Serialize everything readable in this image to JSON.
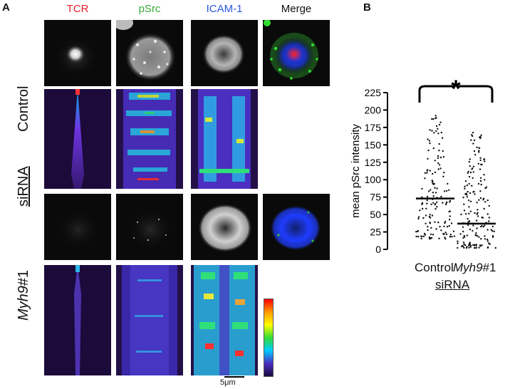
{
  "panel_a": {
    "letter": "A",
    "columns": [
      {
        "label": "TCR",
        "color": "#e8202a"
      },
      {
        "label": "pSrc",
        "color": "#3aab3a"
      },
      {
        "label": "ICAM-1",
        "color": "#2a58e0"
      },
      {
        "label": "Merge",
        "color": "#111111"
      }
    ],
    "row_labels": {
      "control": "Control",
      "myh9_italic": "Myh9",
      "myh9_suffix": "#1",
      "group": "siRNA"
    },
    "scale_bar": "5μm"
  },
  "panel_b": {
    "letter": "B",
    "group_label": "siRNA",
    "significance": "*"
  },
  "chart_data": {
    "type": "scatter",
    "subtype": "dot plot with mean line",
    "ylabel": "mean pSrc intensity",
    "xlabel": "siRNA",
    "ylim": [
      0,
      225
    ],
    "yticks": [
      0,
      25,
      50,
      75,
      100,
      125,
      150,
      175,
      200,
      225
    ],
    "categories": [
      {
        "label": "Control",
        "italic_prefix": "",
        "mean": 73
      },
      {
        "label": "#1",
        "italic_prefix": "Myh9",
        "mean": 37
      }
    ],
    "significance_marker": "*",
    "colors": {
      "points": "#111111",
      "mean_line": "#000000"
    }
  }
}
